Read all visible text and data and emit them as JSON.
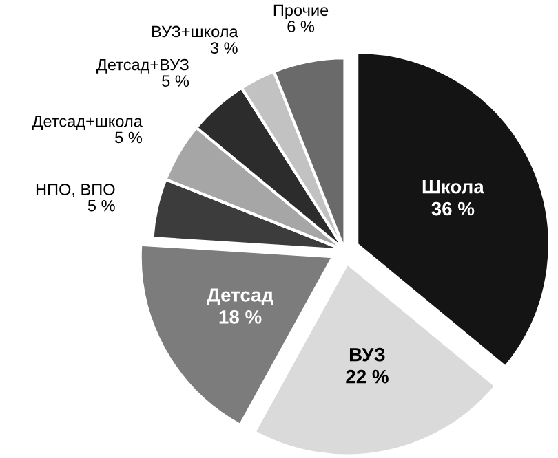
{
  "chart_data": {
    "type": "pie",
    "categories": [
      "Школа",
      "ВУЗ",
      "Детсад",
      "НПО, ВПО",
      "Детсад+школа",
      "Детсад+ВУЗ",
      "ВУЗ+школа",
      "Прочие"
    ],
    "values": [
      36,
      22,
      18,
      5,
      5,
      5,
      3,
      6
    ],
    "value_labels": [
      "36 %",
      "22 %",
      "18 %",
      "5 %",
      "5 %",
      "5 %",
      "3 %",
      "6 %"
    ],
    "colors": [
      "#141414",
      "#dadada",
      "#7c7c7c",
      "#3c3c3c",
      "#a6a6a6",
      "#2c2c2c",
      "#c2c2c2",
      "#6a6a6a"
    ]
  }
}
